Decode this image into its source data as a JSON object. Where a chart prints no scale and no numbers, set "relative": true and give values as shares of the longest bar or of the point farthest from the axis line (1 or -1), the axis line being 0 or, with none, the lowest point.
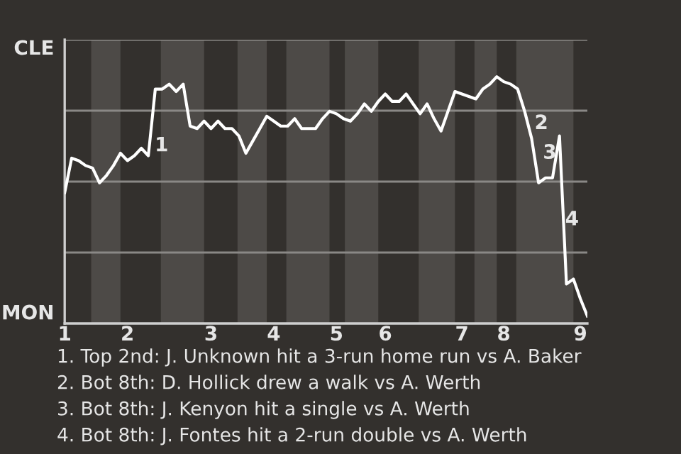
{
  "chart_data": {
    "type": "line",
    "relative": true,
    "categories": [
      "1",
      null,
      null,
      null,
      null,
      null,
      null,
      null,
      null,
      "2",
      null,
      null,
      null,
      null,
      null,
      null,
      null,
      null,
      null,
      null,
      null,
      "3",
      null,
      null,
      null,
      null,
      null,
      null,
      null,
      null,
      "4",
      null,
      null,
      null,
      null,
      null,
      null,
      null,
      null,
      "5",
      null,
      null,
      null,
      null,
      null,
      null,
      "6",
      null,
      null,
      null,
      null,
      null,
      null,
      null,
      null,
      null,
      null,
      "7",
      null,
      null,
      null,
      null,
      null,
      "8",
      null,
      null,
      null,
      null,
      null,
      null,
      null,
      null,
      null,
      null,
      "9",
      null
    ],
    "series": [
      {
        "color": "#ffffff",
        "values": [
          0.53,
          0.67,
          0.66,
          0.64,
          0.63,
          0.57,
          0.6,
          0.64,
          0.69,
          0.66,
          0.68,
          0.71,
          0.68,
          0.95,
          0.95,
          0.97,
          0.94,
          0.97,
          0.8,
          0.79,
          0.82,
          0.79,
          0.82,
          0.79,
          0.79,
          0.76,
          0.69,
          0.74,
          0.79,
          0.84,
          0.82,
          0.8,
          0.8,
          0.83,
          0.79,
          0.79,
          0.79,
          0.83,
          0.86,
          0.85,
          0.83,
          0.82,
          0.85,
          0.89,
          0.86,
          0.9,
          0.93,
          0.9,
          0.9,
          0.93,
          0.89,
          0.85,
          0.89,
          0.83,
          0.78,
          0.86,
          0.94,
          0.93,
          0.92,
          0.91,
          0.95,
          0.97,
          1,
          0.98,
          0.97,
          0.95,
          0.86,
          0.75,
          0.57,
          0.59,
          0.59,
          0.76,
          0.16,
          0.18,
          0.1,
          0.03
        ]
      }
    ],
    "grid": "y",
    "annotations": [
      "CLE",
      "MON",
      "1",
      "2",
      "3",
      "4",
      "1. Top 2nd: J. Unknown hit a 3-run home run vs A. Baker",
      "2. Bot 8th: D. Hollick drew a walk vs A. Werth",
      "3. Bot 8th: J. Kenyon hit a single vs A. Werth",
      "4. Bot 8th: J. Fontes hit a 2-run double vs A. Werth"
    ]
  }
}
